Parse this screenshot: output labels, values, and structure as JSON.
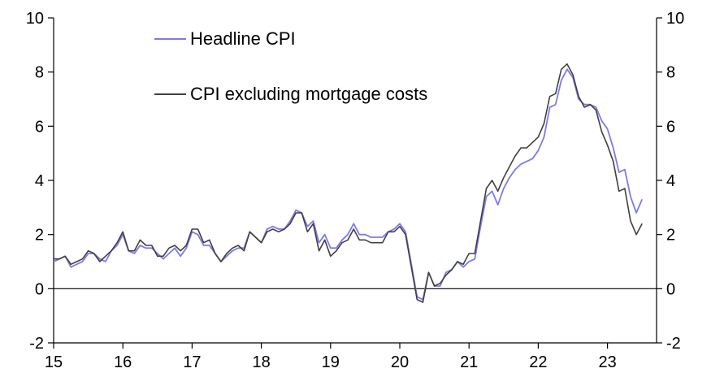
{
  "chart_data": {
    "type": "line",
    "title": "",
    "xlabel": "",
    "ylabel": "",
    "ylim": [
      -2,
      10
    ],
    "y_ticks": [
      "-2",
      "0",
      "2",
      "4",
      "6",
      "8",
      "10"
    ],
    "x_tick_labels": [
      "15",
      "16",
      "17",
      "18",
      "19",
      "20",
      "21",
      "22",
      "23"
    ],
    "x_start_year": 2015,
    "legend_position": "top-left",
    "series": [
      {
        "name": "Headline CPI",
        "color": "#7b7bea",
        "values": [
          1.0,
          1.1,
          1.2,
          0.8,
          0.9,
          1.0,
          1.3,
          1.3,
          1.1,
          1.0,
          1.4,
          1.6,
          2.0,
          1.4,
          1.3,
          1.6,
          1.5,
          1.5,
          1.3,
          1.1,
          1.3,
          1.5,
          1.2,
          1.5,
          2.1,
          2.0,
          1.6,
          1.6,
          1.3,
          1.0,
          1.2,
          1.4,
          1.5,
          1.5,
          2.1,
          1.9,
          1.7,
          2.2,
          2.3,
          2.2,
          2.2,
          2.5,
          2.9,
          2.8,
          2.3,
          2.5,
          1.7,
          2.0,
          1.5,
          1.5,
          1.8,
          2.0,
          2.4,
          2.0,
          2.0,
          1.9,
          1.9,
          1.9,
          2.1,
          2.2,
          2.4,
          2.1,
          0.9,
          -0.3,
          -0.4,
          0.6,
          0.1,
          0.1,
          0.6,
          0.7,
          1.0,
          0.8,
          1.0,
          1.1,
          2.3,
          3.4,
          3.6,
          3.1,
          3.7,
          4.1,
          4.4,
          4.6,
          4.7,
          4.8,
          5.1,
          5.6,
          6.7,
          6.8,
          7.7,
          8.1,
          7.8,
          7.0,
          6.8,
          6.8,
          6.7,
          6.2,
          5.9,
          5.2,
          4.3,
          4.4,
          3.4,
          2.8,
          3.3
        ]
      },
      {
        "name": "CPI excluding mortgage costs",
        "color": "#404040",
        "values": [
          1.1,
          1.1,
          1.2,
          0.9,
          1.0,
          1.1,
          1.4,
          1.3,
          1.0,
          1.2,
          1.4,
          1.7,
          2.1,
          1.4,
          1.4,
          1.8,
          1.6,
          1.6,
          1.2,
          1.2,
          1.5,
          1.6,
          1.4,
          1.6,
          2.2,
          2.2,
          1.7,
          1.8,
          1.3,
          1.0,
          1.3,
          1.5,
          1.6,
          1.4,
          2.1,
          1.9,
          1.7,
          2.1,
          2.2,
          2.1,
          2.2,
          2.4,
          2.8,
          2.8,
          2.1,
          2.4,
          1.4,
          1.8,
          1.2,
          1.4,
          1.7,
          1.8,
          2.2,
          1.8,
          1.8,
          1.7,
          1.7,
          1.7,
          2.1,
          2.1,
          2.3,
          2.0,
          0.8,
          -0.4,
          -0.5,
          0.6,
          0.1,
          0.2,
          0.5,
          0.7,
          1.0,
          0.9,
          1.3,
          1.3,
          2.5,
          3.7,
          4.0,
          3.6,
          4.1,
          4.5,
          4.9,
          5.2,
          5.2,
          5.4,
          5.6,
          6.1,
          7.1,
          7.2,
          8.1,
          8.3,
          7.9,
          7.1,
          6.7,
          6.8,
          6.6,
          5.8,
          5.3,
          4.7,
          3.6,
          3.7,
          2.5,
          2.0,
          2.4
        ]
      }
    ]
  }
}
